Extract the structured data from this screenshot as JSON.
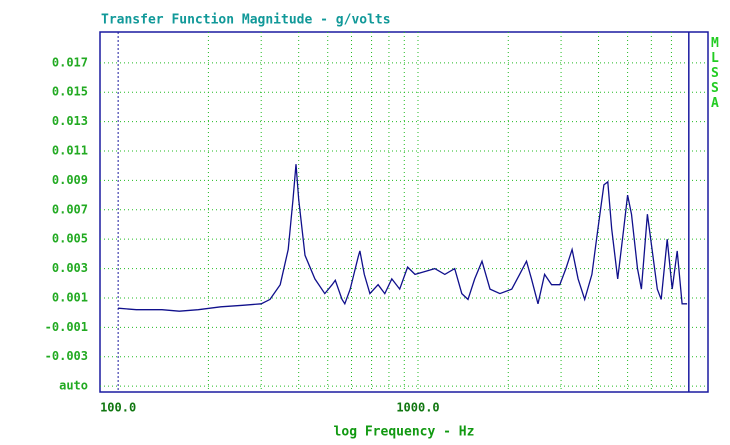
{
  "chart_data": {
    "type": "line",
    "title": "Transfer Function Magnitude - g/volts",
    "x_label": "log Frequency - Hz",
    "side_label": "MLSSA",
    "log_x": true,
    "grid": true,
    "xlim": [
      87,
      9270
    ],
    "ylim": [
      -0.0054,
      0.0191
    ],
    "xticks": [
      {
        "value": 100,
        "label": "100.0"
      },
      {
        "value": 1000,
        "label": "1000.0"
      }
    ],
    "x_minor_ticks": [
      200,
      300,
      400,
      500,
      600,
      700,
      800,
      900,
      2000,
      3000,
      4000,
      5000,
      6000,
      7000,
      8000
    ],
    "yticks": [
      0.017,
      0.015,
      0.013,
      0.011,
      0.009,
      0.007,
      0.005,
      0.003,
      0.001,
      -0.001,
      -0.003,
      {
        "value": -0.005,
        "label": "auto"
      }
    ],
    "series": [
      {
        "color": "#10108c",
        "x": [
          100,
          115,
          140,
          160,
          185,
          220,
          260,
          300,
          321,
          347,
          369,
          383,
          392,
          400,
          420,
          453,
          489,
          517,
          530,
          558,
          570,
          594,
          632,
          640,
          662,
          691,
          736,
          775,
          818,
          869,
          923,
          977,
          1055,
          1138,
          1228,
          1325,
          1400,
          1468,
          1546,
          1635,
          1738,
          1875,
          2055,
          2181,
          2301,
          2391,
          2512,
          2643,
          2790,
          2971,
          3112,
          3264,
          3419,
          3597,
          3800,
          3981,
          4169,
          4295,
          4425,
          4634,
          4853,
          5000,
          5152,
          5395,
          5558,
          5821,
          5998,
          6280,
          6471,
          6776,
          7040,
          7316,
          7599,
          7895
        ],
        "values": [
          0.0003,
          0.0002,
          0.0002,
          0.0001,
          0.0002,
          0.0004,
          0.0005,
          0.0006,
          0.0009,
          0.0019,
          0.0043,
          0.0077,
          0.0101,
          0.0077,
          0.0039,
          0.0023,
          0.0013,
          0.0019,
          0.0022,
          0.0009,
          0.0006,
          0.0016,
          0.0038,
          0.0042,
          0.0026,
          0.0013,
          0.0019,
          0.0013,
          0.0023,
          0.0016,
          0.0031,
          0.0026,
          0.0028,
          0.003,
          0.0026,
          0.003,
          0.0013,
          0.0009,
          0.0023,
          0.0035,
          0.0016,
          0.0013,
          0.0016,
          0.0026,
          0.0035,
          0.0023,
          0.0006,
          0.0026,
          0.0019,
          0.0019,
          0.003,
          0.0043,
          0.0023,
          0.0009,
          0.0026,
          0.0057,
          0.0087,
          0.0089,
          0.0057,
          0.0023,
          0.0057,
          0.008,
          0.0067,
          0.003,
          0.0016,
          0.0067,
          0.0047,
          0.0016,
          0.0009,
          0.005,
          0.0016,
          0.0042,
          0.0006,
          0.0006
        ]
      }
    ]
  }
}
